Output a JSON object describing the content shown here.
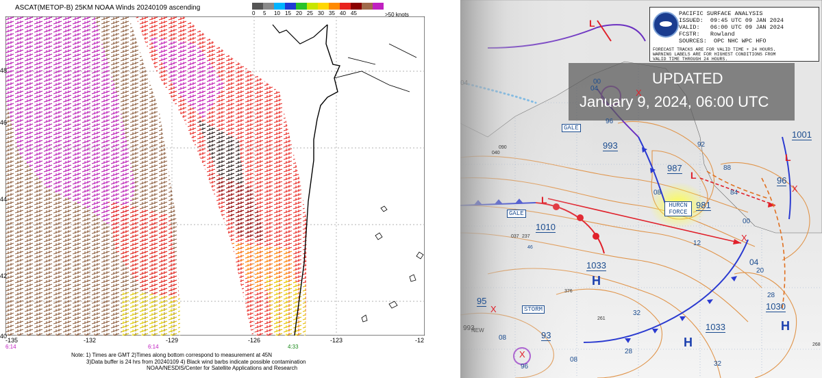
{
  "ascat": {
    "title": "ASCAT(METOP-B) 25KM NOAA Winds 20240109 ascending",
    "legend_ticks": [
      "0",
      "5",
      "10",
      "15",
      "20",
      "25",
      "30",
      "35",
      "40",
      "45"
    ],
    "legend_unit": ">50 knots",
    "legend_colors": [
      "#555555",
      "#8a8a8a",
      "#00b4ff",
      "#1f3bd6",
      "#29c229",
      "#c8e600",
      "#ffd700",
      "#ff8a00",
      "#e8231e",
      "#8b0000",
      "#a06a4a",
      "#c020c0"
    ],
    "x_ticks": [
      "-135",
      "-132",
      "-129",
      "-126",
      "-123",
      "-12"
    ],
    "y_ticks": [
      "40",
      "42",
      "44",
      "46",
      "48"
    ],
    "times": [
      "6:14",
      "6:14",
      "4:33"
    ],
    "notes": [
      "Note: 1) Times are GMT 2)Times along bottom correspond to measurement at 45N",
      "3)Data buffer is 24 hrs from 20240109 4) Black wind barbs indicate possible contamination",
      "NOAA/NESDIS/Center for Satellite Applications and Research"
    ]
  },
  "surface": {
    "info_lines": [
      "PACIFIC SURFACE ANALYSIS",
      "ISSUED:  09:45 UTC 09 JAN 2024",
      "VALID:   06:00 UTC 09 JAN 2024",
      "FCSTR:   Rowland",
      "SOURCES:  OPC NHC WPC HFO"
    ],
    "info_notes": [
      "FORECAST TRACKS ARE FOR VALID TIME + 24 HOURS.",
      "WARNING LABELS ARE FOR HIGHEST CONDITIONS FROM",
      "VALID TIME THROUGH 24 HOURS."
    ],
    "updated_line1": "UPDATED",
    "updated_line2": "January 9, 2024, 06:00 UTC",
    "warnings": {
      "gale1": "GALE",
      "gale2": "GALE",
      "hurricane": "HURCN FORCE",
      "storm": "STORM"
    },
    "pressures": {
      "p993": "993",
      "p987": "987",
      "p981": "981",
      "p1001": "1001",
      "p1010": "1010",
      "p1033a": "1033",
      "p1033b": "1033",
      "p1030": "1030",
      "p95": "95",
      "p93": "93",
      "p96": "96"
    },
    "isobar_labels": [
      "04",
      "00",
      "96",
      "92",
      "88",
      "84",
      "08",
      "12",
      "04",
      "20",
      "28",
      "32",
      "28",
      "32",
      "08",
      "00",
      "08",
      "04",
      "96"
    ],
    "obs_labels": [
      "040",
      "037",
      "090",
      "237",
      "376",
      "261",
      "268",
      "46"
    ],
    "high_symbol": "H",
    "low_symbol": "L",
    "cross_symbol": "X",
    "new_label": "NEW",
    "h993_label": "993"
  }
}
